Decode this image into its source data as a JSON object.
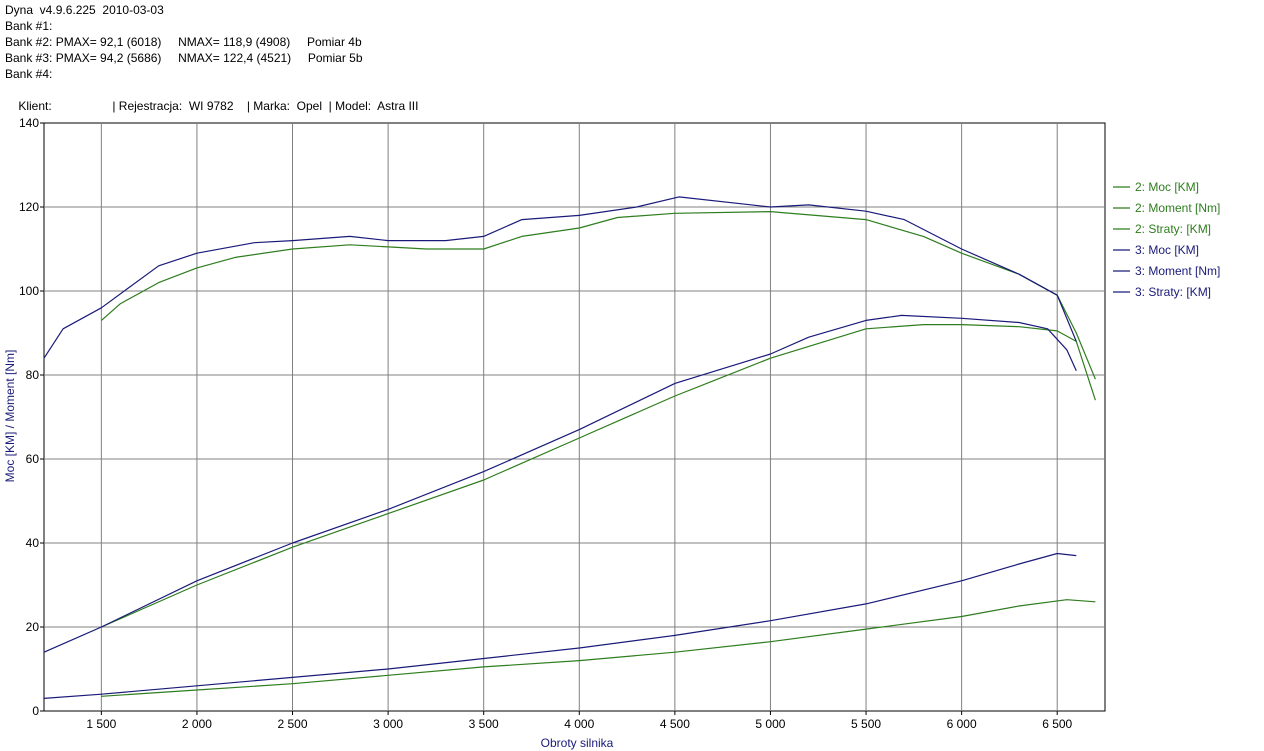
{
  "header": {
    "app_line": "Dyna  v4.9.6.225  2010-03-03",
    "bank1": "Bank #1:",
    "bank2": "Bank #2: PMAX= 92,1 (6018)     NMAX= 118,9 (4908)     Pomiar 4b",
    "bank3": "Bank #3: PMAX= 94,2 (5686)     NMAX= 122,4 (4521)     Pomiar 5b",
    "bank4": "Bank #4:",
    "client_label": "Klient:",
    "client_rest": "| Rejestracja:  WI 9782    | Marka:  Opel  | Model:  Astra III"
  },
  "chart_data": {
    "type": "line",
    "xlabel": "Obroty silnika",
    "ylabel": "Moc [KM] / Moment [Nm]",
    "xlim": [
      1200,
      6750
    ],
    "ylim": [
      0,
      140
    ],
    "x_ticks": [
      1500,
      2000,
      2500,
      3000,
      3500,
      4000,
      4500,
      5000,
      5500,
      6000,
      6500
    ],
    "x_tick_labels": [
      "1 500",
      "2 000",
      "2 500",
      "3 000",
      "3 500",
      "4 000",
      "4 500",
      "5 000",
      "5 500",
      "6 000",
      "6 500"
    ],
    "y_ticks": [
      0,
      20,
      40,
      60,
      80,
      100,
      120,
      140
    ],
    "grid": true,
    "legend_position": "right",
    "series": [
      {
        "name": "2: Moc [KM]",
        "color": "#2e7d1e",
        "x": [
          1500,
          2000,
          2500,
          3000,
          3500,
          4000,
          4500,
          5000,
          5500,
          5800,
          6000,
          6300,
          6500,
          6600,
          6700
        ],
        "y": [
          20,
          30,
          39,
          47,
          55,
          65,
          75,
          84,
          91,
          92,
          92,
          91.5,
          90.5,
          88,
          74
        ]
      },
      {
        "name": "2: Moment [Nm]",
        "color": "#2e7d1e",
        "x": [
          1500,
          1600,
          1800,
          2000,
          2200,
          2500,
          2800,
          3000,
          3200,
          3500,
          3700,
          4000,
          4200,
          4500,
          5000,
          5500,
          5800,
          6000,
          6300,
          6500,
          6600,
          6700
        ],
        "y": [
          93,
          97,
          102,
          105.5,
          108,
          110,
          111,
          110.5,
          110,
          110,
          113,
          115,
          117.5,
          118.5,
          118.9,
          117,
          113,
          109,
          104,
          99,
          90,
          79
        ]
      },
      {
        "name": "2: Straty: [KM]",
        "color": "#2e7d1e",
        "x": [
          1500,
          2000,
          2500,
          3000,
          3500,
          4000,
          4500,
          5000,
          5500,
          6000,
          6300,
          6550,
          6700
        ],
        "y": [
          3.5,
          5,
          6.5,
          8.5,
          10.5,
          12,
          14,
          16.5,
          19.5,
          22.5,
          25,
          26.5,
          26
        ]
      },
      {
        "name": "3: Moc [KM]",
        "color": "#1a1a7a",
        "x": [
          1200,
          1500,
          2000,
          2500,
          3000,
          3500,
          4000,
          4500,
          5000,
          5200,
          5500,
          5686,
          6000,
          6300,
          6450,
          6550,
          6600
        ],
        "y": [
          14,
          20,
          31,
          40,
          48,
          57,
          67,
          78,
          85,
          89,
          93,
          94.2,
          93.5,
          92.5,
          91,
          86,
          81
        ]
      },
      {
        "name": "3: Moment [Nm]",
        "color": "#1a1a7a",
        "x": [
          1200,
          1300,
          1500,
          1800,
          2000,
          2300,
          2500,
          2800,
          3000,
          3300,
          3500,
          3700,
          4000,
          4300,
          4521,
          5000,
          5200,
          5500,
          5700,
          6000,
          6300,
          6500,
          6600
        ],
        "y": [
          84,
          91,
          96,
          106,
          109,
          111.5,
          112,
          113,
          112,
          112,
          113,
          117,
          118,
          120,
          122.4,
          120,
          120.5,
          119,
          117,
          110,
          104,
          99,
          88
        ]
      },
      {
        "name": "3: Straty: [KM]",
        "color": "#1a1a7a",
        "x": [
          1200,
          1500,
          2000,
          2500,
          3000,
          3500,
          4000,
          4500,
          5000,
          5500,
          6000,
          6300,
          6500,
          6600
        ],
        "y": [
          3,
          4,
          6,
          8,
          10,
          12.5,
          15,
          18,
          21.5,
          25.5,
          31,
          35,
          37.5,
          37
        ]
      }
    ]
  }
}
